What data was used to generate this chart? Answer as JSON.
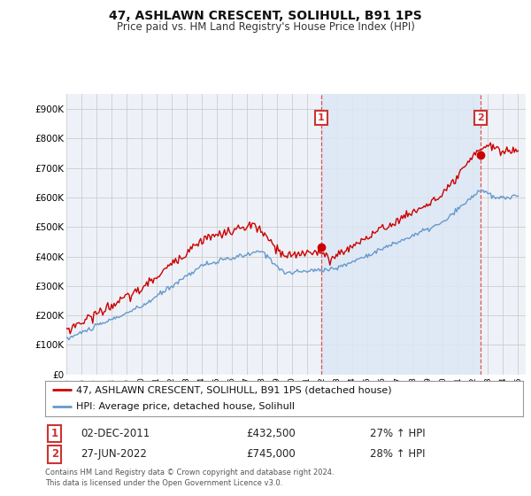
{
  "title": "47, ASHLAWN CRESCENT, SOLIHULL, B91 1PS",
  "subtitle": "Price paid vs. HM Land Registry's House Price Index (HPI)",
  "legend_line1": "47, ASHLAWN CRESCENT, SOLIHULL, B91 1PS (detached house)",
  "legend_line2": "HPI: Average price, detached house, Solihull",
  "footnote": "Contains HM Land Registry data © Crown copyright and database right 2024.\nThis data is licensed under the Open Government Licence v3.0.",
  "annotation1_label": "1",
  "annotation1_date": "02-DEC-2011",
  "annotation1_price": "£432,500",
  "annotation1_hpi": "27% ↑ HPI",
  "annotation2_label": "2",
  "annotation2_date": "27-JUN-2022",
  "annotation2_price": "£745,000",
  "annotation2_hpi": "28% ↑ HPI",
  "hpi_color": "#6699cc",
  "price_color": "#cc0000",
  "marker_color": "#cc0000",
  "annotation_box_color": "#cc3333",
  "vline_color": "#dd4444",
  "shade_color": "#dce8f5",
  "grid_color": "#cccccc",
  "background_color": "#ffffff",
  "plot_bg_color": "#eef2f8",
  "ylim": [
    0,
    950000
  ],
  "yticks": [
    0,
    100000,
    200000,
    300000,
    400000,
    500000,
    600000,
    700000,
    800000,
    900000
  ],
  "ytick_labels": [
    "£0",
    "£100K",
    "£200K",
    "£300K",
    "£400K",
    "£500K",
    "£600K",
    "£700K",
    "£800K",
    "£900K"
  ],
  "sale1_year": 2011.917,
  "sale1_price": 432500,
  "sale2_year": 2022.5,
  "sale2_price": 745000,
  "vline1_year": 2011.917,
  "vline2_year": 2022.5
}
